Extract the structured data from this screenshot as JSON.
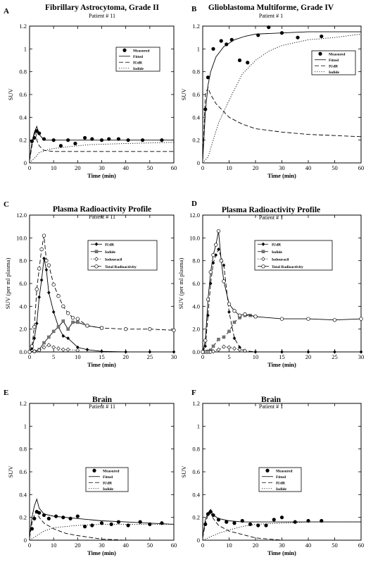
{
  "chart_data": [
    {
      "panel": "A",
      "type": "line",
      "title": "Fibrillary Astrocytoma, Grade II",
      "subtitle": "Patient # 11",
      "xlabel": "Time (min)",
      "ylabel": "SUV",
      "xlim": [
        0,
        60
      ],
      "ylim": [
        0,
        1.2
      ],
      "xticks": [
        0,
        10,
        20,
        30,
        40,
        50,
        60
      ],
      "yticks": [
        0,
        0.2,
        0.4,
        0.6,
        0.8,
        1.0,
        1.2
      ],
      "yticklabels": [
        "0",
        "0.2",
        "0.4",
        "0.6",
        "0.8",
        "1",
        "1.2"
      ],
      "legend": [
        "Measured",
        "Fitted",
        "IUdR",
        "Iodide"
      ],
      "legend_position": "upper-right",
      "series": [
        {
          "name": "Measured",
          "style": "dots",
          "x": [
            1,
            2,
            3,
            4,
            6,
            10,
            13,
            16,
            19,
            23,
            26,
            30,
            33,
            37,
            41,
            47,
            55
          ],
          "y": [
            0.19,
            0.22,
            0.28,
            0.26,
            0.21,
            0.2,
            0.15,
            0.2,
            0.17,
            0.22,
            0.21,
            0.2,
            0.21,
            0.21,
            0.2,
            0.2,
            0.2
          ]
        },
        {
          "name": "Fitted",
          "style": "solid",
          "x": [
            0,
            1,
            2,
            3,
            4,
            6,
            10,
            20,
            40,
            60
          ],
          "y": [
            0.03,
            0.18,
            0.27,
            0.32,
            0.25,
            0.2,
            0.2,
            0.2,
            0.2,
            0.2
          ]
        },
        {
          "name": "IUdR",
          "style": "dashed",
          "x": [
            0,
            1,
            2,
            2.5,
            3,
            4,
            6,
            10,
            20,
            60
          ],
          "y": [
            0.02,
            0.15,
            0.25,
            0.28,
            0.2,
            0.15,
            0.11,
            0.1,
            0.1,
            0.1
          ]
        },
        {
          "name": "Iodide",
          "style": "dotted",
          "x": [
            0,
            2,
            4,
            8,
            15,
            25,
            40,
            60
          ],
          "y": [
            0,
            0.04,
            0.09,
            0.12,
            0.14,
            0.16,
            0.17,
            0.18
          ]
        }
      ]
    },
    {
      "panel": "B",
      "type": "line",
      "title": "Glioblastoma Multiforme, Grade IV",
      "subtitle": "Patient # 1",
      "xlabel": "Time (min)",
      "ylabel": "SUV",
      "xlim": [
        0,
        60
      ],
      "ylim": [
        0,
        1.2
      ],
      "xticks": [
        0,
        10,
        20,
        30,
        40,
        50,
        60
      ],
      "yticks": [
        0,
        0.2,
        0.4,
        0.6,
        0.8,
        1.0,
        1.2
      ],
      "yticklabels": [
        "0",
        "0.2",
        "0.4",
        "0.6",
        "0.8",
        "1",
        "1.2"
      ],
      "legend": [
        "Measured",
        "Fitted",
        "IUdR",
        "Iodide"
      ],
      "legend_position": "right",
      "series": [
        {
          "name": "Measured",
          "style": "dots",
          "x": [
            1,
            2,
            4,
            7,
            9,
            11,
            14,
            17,
            21,
            25,
            30,
            36,
            45
          ],
          "y": [
            0.47,
            0.75,
            1.0,
            1.07,
            1.04,
            1.08,
            0.9,
            0.88,
            1.12,
            1.19,
            1.14,
            1.1,
            1.11
          ]
        },
        {
          "name": "Fitted",
          "style": "solid",
          "x": [
            0,
            1,
            2,
            3,
            5,
            8,
            12,
            16,
            20,
            30,
            40,
            50,
            60
          ],
          "y": [
            0.02,
            0.45,
            0.68,
            0.8,
            0.93,
            1.02,
            1.08,
            1.11,
            1.13,
            1.14,
            1.15,
            1.15,
            1.15
          ]
        },
        {
          "name": "IUdR",
          "style": "dashed",
          "x": [
            0,
            1,
            2,
            3,
            5,
            10,
            15,
            20,
            30,
            40,
            50,
            60
          ],
          "y": [
            0.02,
            0.6,
            0.66,
            0.6,
            0.52,
            0.4,
            0.34,
            0.3,
            0.27,
            0.25,
            0.24,
            0.23
          ]
        },
        {
          "name": "Iodide",
          "style": "dotted",
          "x": [
            0,
            2,
            4,
            6,
            10,
            15,
            20,
            25,
            30,
            40,
            50,
            60
          ],
          "y": [
            0,
            0.05,
            0.2,
            0.35,
            0.55,
            0.78,
            0.9,
            0.98,
            1.03,
            1.08,
            1.1,
            1.13
          ]
        }
      ]
    },
    {
      "panel": "C",
      "type": "line",
      "title": "Plasma Radioactivity Profile",
      "subtitle": "Patient # 11",
      "xlabel": "Time (min)",
      "ylabel": "SUV (per ml plasma)",
      "xlim": [
        0,
        30
      ],
      "ylim": [
        0,
        12
      ],
      "xticks": [
        0,
        5,
        10,
        15,
        20,
        25,
        30
      ],
      "yticks": [
        0,
        2,
        4,
        6,
        8,
        10,
        12
      ],
      "yticklabels": [
        "0.0",
        "2.0",
        "4.0",
        "6.0",
        "8.0",
        "10.0",
        "12.0"
      ],
      "legend": [
        "IUdR",
        "Iodide",
        "Iodouracil",
        "Total Radioactivity"
      ],
      "legend_position": "upper-right",
      "series": [
        {
          "name": "IUdR",
          "style": "solid-filled-diamond",
          "x": [
            0,
            0.5,
            1,
            1.5,
            2,
            2.5,
            3,
            3.5,
            4,
            5,
            6,
            7,
            8,
            10,
            12,
            15,
            20,
            25,
            30
          ],
          "y": [
            0,
            0.3,
            1.2,
            2.5,
            4.8,
            6.3,
            8.2,
            7.2,
            5.2,
            3.5,
            2.2,
            1.4,
            1.2,
            0.4,
            0.2,
            0.05,
            0,
            0,
            0
          ]
        },
        {
          "name": "Iodide",
          "style": "solid-filled-square",
          "x": [
            0,
            1,
            2,
            3,
            4,
            5,
            6,
            7,
            8,
            9,
            10,
            12,
            15
          ],
          "y": [
            0,
            0.05,
            0.2,
            0.8,
            1.3,
            1.8,
            2.2,
            2.7,
            2.0,
            2.6,
            2.6,
            2.3,
            2.1
          ]
        },
        {
          "name": "Iodouracil",
          "style": "dotted-open-diamond",
          "x": [
            0,
            1,
            2,
            3,
            4,
            5,
            6,
            7,
            8,
            10
          ],
          "y": [
            0,
            0.05,
            0.15,
            0.4,
            0.6,
            0.4,
            0.3,
            0.2,
            0.2,
            0.15
          ]
        },
        {
          "name": "Total Radioactivity",
          "style": "dashed-open-circle",
          "x": [
            0,
            0.5,
            1,
            1.5,
            2,
            2.5,
            3,
            3.5,
            4,
            5,
            6,
            7,
            8,
            9,
            10,
            12,
            15,
            20,
            25,
            30
          ],
          "y": [
            0,
            0.5,
            2.2,
            5.5,
            7.3,
            9.0,
            10.2,
            8.0,
            7.6,
            5.9,
            4.9,
            4.0,
            3.4,
            3.0,
            2.9,
            2.3,
            2.1,
            2.0,
            2.0,
            1.9
          ]
        }
      ]
    },
    {
      "panel": "D",
      "type": "line",
      "title": "Plasma Radioactivity Profile",
      "subtitle": "Patient # 1",
      "xlabel": "Time (min)",
      "ylabel": "SUV (per ml plasma)",
      "xlim": [
        0,
        30
      ],
      "ylim": [
        0,
        12
      ],
      "xticks": [
        0,
        5,
        10,
        15,
        20,
        25,
        30
      ],
      "yticks": [
        0,
        2,
        4,
        6,
        8,
        10,
        12
      ],
      "yticklabels": [
        "0.0",
        "2.0",
        "4.0",
        "6.0",
        "8.0",
        "10.0",
        "12.0"
      ],
      "legend": [
        "IUdR",
        "Iodide",
        "Iodouracil",
        "Total Radioactivity"
      ],
      "legend_position": "upper-right",
      "series": [
        {
          "name": "IUdR",
          "style": "dashed-filled-diamond",
          "x": [
            0,
            0.5,
            1,
            1.5,
            2,
            2.5,
            3,
            4,
            5,
            6,
            7,
            8,
            10,
            15,
            20,
            25,
            30
          ],
          "y": [
            0,
            0.5,
            3.2,
            6.0,
            7.8,
            8.5,
            9.0,
            7.6,
            3.5,
            1.2,
            0.4,
            0.1,
            0,
            0,
            0,
            0,
            0
          ]
        },
        {
          "name": "Iodide",
          "style": "dashed-filled-square",
          "x": [
            0,
            1,
            1.5,
            2,
            3,
            4,
            5,
            6,
            7,
            8,
            9,
            10
          ],
          "y": [
            0,
            0.05,
            0.15,
            0.5,
            1.1,
            1.3,
            1.8,
            2.6,
            3.0,
            3.2,
            3.2,
            3.1
          ]
        },
        {
          "name": "Iodouracil",
          "style": "dotted-open-diamond",
          "x": [
            0,
            0.3,
            0.6,
            0.9,
            1.2,
            1.5,
            2,
            3,
            4,
            5,
            6,
            7,
            8
          ],
          "y": [
            0,
            0,
            0,
            0,
            0,
            0,
            0.05,
            0.2,
            0.45,
            0.4,
            0.3,
            0.2,
            0.1
          ]
        },
        {
          "name": "Total Radioactivity",
          "style": "solid-open-circle",
          "x": [
            0,
            0.5,
            1,
            1.5,
            2,
            2.5,
            3,
            3.5,
            4,
            5,
            6,
            7,
            8,
            10,
            15,
            20,
            25,
            30
          ],
          "y": [
            0,
            1.0,
            4.6,
            7.0,
            8.5,
            9.4,
            10.6,
            8.0,
            6.2,
            4.2,
            3.6,
            3.2,
            3.3,
            3.1,
            2.9,
            2.9,
            2.8,
            2.9
          ]
        }
      ]
    },
    {
      "panel": "E",
      "type": "line",
      "title": "Brain",
      "subtitle": "Patient # 11",
      "xlabel": "Time (min)",
      "ylabel": "SUV",
      "xlim": [
        0,
        60
      ],
      "ylim": [
        0,
        1.2
      ],
      "xticks": [
        0,
        10,
        20,
        30,
        40,
        50,
        60
      ],
      "yticks": [
        0,
        0.2,
        0.4,
        0.6,
        0.8,
        1.0,
        1.2
      ],
      "yticklabels": [
        "0",
        "0.2",
        "0.4",
        "0.6",
        "0.8",
        "1",
        "1.2"
      ],
      "legend": [
        "Measured",
        "Fitted",
        "IUdR",
        "Iodide"
      ],
      "legend_position": "center",
      "series": [
        {
          "name": "Measured",
          "style": "dots",
          "x": [
            1,
            2,
            3,
            4,
            6,
            8,
            11,
            14,
            17,
            20,
            23,
            26,
            30,
            34,
            37,
            41,
            46,
            50,
            55
          ],
          "y": [
            0.1,
            0.19,
            0.25,
            0.24,
            0.22,
            0.19,
            0.21,
            0.2,
            0.19,
            0.21,
            0.12,
            0.13,
            0.15,
            0.14,
            0.16,
            0.13,
            0.16,
            0.14,
            0.15
          ]
        },
        {
          "name": "Fitted",
          "style": "solid",
          "x": [
            0,
            1,
            2,
            3,
            4,
            6,
            10,
            20,
            30,
            40,
            50,
            60
          ],
          "y": [
            0.03,
            0.2,
            0.3,
            0.36,
            0.28,
            0.23,
            0.21,
            0.19,
            0.17,
            0.16,
            0.15,
            0.14
          ]
        },
        {
          "name": "IUdR",
          "style": "dashed",
          "x": [
            0,
            1,
            2,
            3,
            4,
            6,
            10,
            15,
            20,
            30,
            40
          ],
          "y": [
            0.02,
            0.15,
            0.22,
            0.25,
            0.2,
            0.15,
            0.1,
            0.06,
            0.04,
            0.01,
            0
          ]
        },
        {
          "name": "Iodide",
          "style": "dotted",
          "x": [
            0,
            3,
            6,
            10,
            20,
            30,
            40,
            50,
            60
          ],
          "y": [
            0,
            0.04,
            0.08,
            0.11,
            0.13,
            0.14,
            0.14,
            0.14,
            0.14
          ]
        }
      ]
    },
    {
      "panel": "F",
      "type": "line",
      "title": "Brain",
      "subtitle": "Patient # 1",
      "xlabel": "Time (min)",
      "ylabel": "SUV",
      "xlim": [
        0,
        60
      ],
      "ylim": [
        0,
        1.2
      ],
      "xticks": [
        0,
        10,
        20,
        30,
        40,
        50,
        60
      ],
      "yticks": [
        0,
        0.2,
        0.4,
        0.6,
        0.8,
        1.0,
        1.2
      ],
      "yticklabels": [
        "0",
        "0.2",
        "0.4",
        "0.6",
        "0.8",
        "1",
        "1.2"
      ],
      "legend": [
        "Measured",
        "Fitted",
        "IUdR",
        "Iodide"
      ],
      "legend_position": "center",
      "series": [
        {
          "name": "Measured",
          "style": "dots",
          "x": [
            1,
            2,
            3,
            4,
            6,
            9,
            12,
            15,
            18,
            21,
            24,
            27,
            30,
            35,
            40,
            45
          ],
          "y": [
            0.14,
            0.23,
            0.25,
            0.22,
            0.18,
            0.16,
            0.15,
            0.17,
            0.14,
            0.13,
            0.13,
            0.18,
            0.2,
            0.16,
            0.17,
            0.17
          ]
        },
        {
          "name": "Fitted",
          "style": "solid",
          "x": [
            0,
            1,
            2,
            3,
            4,
            6,
            10,
            15,
            20,
            30,
            40,
            60
          ],
          "y": [
            0.03,
            0.18,
            0.24,
            0.27,
            0.22,
            0.19,
            0.17,
            0.16,
            0.16,
            0.16,
            0.16,
            0.16
          ]
        },
        {
          "name": "IUdR",
          "style": "dashed",
          "x": [
            0,
            1,
            2,
            3,
            4,
            6,
            10,
            15,
            20,
            25,
            30
          ],
          "y": [
            0.02,
            0.15,
            0.22,
            0.24,
            0.19,
            0.13,
            0.08,
            0.05,
            0.02,
            0.01,
            0
          ]
        },
        {
          "name": "Iodide",
          "style": "dotted",
          "x": [
            0,
            3,
            6,
            10,
            15,
            20,
            30,
            40,
            60
          ],
          "y": [
            0,
            0.03,
            0.06,
            0.09,
            0.12,
            0.14,
            0.15,
            0.16,
            0.16
          ]
        }
      ]
    }
  ]
}
